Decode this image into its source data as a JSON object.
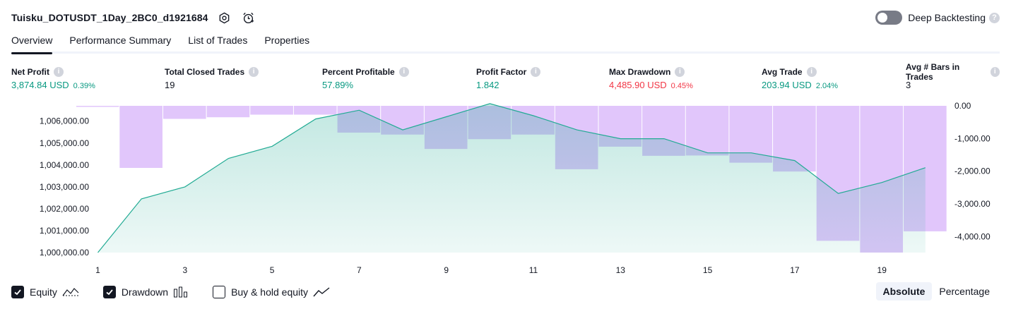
{
  "header": {
    "title": "Tuisku_DOTUSDT_1Day_2BC0_d1921684",
    "deep_backtesting_label": "Deep Backtesting",
    "deep_backtesting_enabled": false
  },
  "tabs": [
    {
      "label": "Overview",
      "active": true
    },
    {
      "label": "Performance Summary",
      "active": false
    },
    {
      "label": "List of Trades",
      "active": false
    },
    {
      "label": "Properties",
      "active": false
    }
  ],
  "metrics": {
    "net_profit": {
      "label": "Net Profit",
      "value": "3,874.84 USD",
      "sub": "0.39%"
    },
    "total_closed_trades": {
      "label": "Total Closed Trades",
      "value": "19"
    },
    "percent_profitable": {
      "label": "Percent Profitable",
      "value": "57.89%"
    },
    "profit_factor": {
      "label": "Profit Factor",
      "value": "1.842"
    },
    "max_drawdown": {
      "label": "Max Drawdown",
      "value": "4,485.90 USD",
      "sub": "0.45%"
    },
    "avg_trade": {
      "label": "Avg Trade",
      "value": "203.94 USD",
      "sub": "2.04%"
    },
    "avg_bars": {
      "label": "Avg # Bars in Trades",
      "value": "3"
    }
  },
  "colors": {
    "equity_line": "#22ab94",
    "equity_fill": "#cdeee6",
    "drawdown_bar": "#e1c6fb",
    "positive": "#089981",
    "negative": "#f23645"
  },
  "chart_data": {
    "type": "area",
    "x": [
      1,
      2,
      3,
      4,
      5,
      6,
      7,
      8,
      9,
      10,
      11,
      12,
      13,
      14,
      15,
      16,
      17,
      18,
      19,
      20
    ],
    "x_ticks": [
      "1",
      "3",
      "5",
      "7",
      "9",
      "11",
      "13",
      "15",
      "17",
      "19"
    ],
    "series": [
      {
        "axis": "left",
        "type": "area",
        "values": [
          1000000,
          1002450,
          1003000,
          1004300,
          1004850,
          1006100,
          1006500,
          1005600,
          1006200,
          1006800,
          1006250,
          1005600,
          1005200,
          1005200,
          1004550,
          1004550,
          1004200,
          1002700,
          1003200,
          1003875
        ]
      },
      {
        "axis": "right",
        "type": "bar",
        "values": [
          0,
          -1900,
          -400,
          -350,
          -270,
          -270,
          -820,
          -880,
          -1320,
          -1020,
          -880,
          -1940,
          -1250,
          -1530,
          -1520,
          -1740,
          -2010,
          -4130,
          -4490,
          -3840
        ]
      }
    ],
    "y_left_ticks": [
      "1,000,000.00",
      "1,001,000.00",
      "1,002,000.00",
      "1,003,000.00",
      "1,004,000.00",
      "1,005,000.00",
      "1,006,000.00"
    ],
    "y_right_ticks": [
      "0.00",
      "-1,000.00",
      "-2,000.00",
      "-3,000.00",
      "-4,000.00"
    ],
    "ylim_left": [
      1000000,
      1006700
    ],
    "ylim_right": [
      -4490,
      0
    ],
    "grid": false
  },
  "legend": {
    "equity": {
      "label": "Equity",
      "checked": true
    },
    "drawdown": {
      "label": "Drawdown",
      "checked": true
    },
    "buy_hold": {
      "label": "Buy & hold equity",
      "checked": false
    }
  },
  "mode": {
    "absolute_label": "Absolute",
    "percentage_label": "Percentage",
    "active": "absolute"
  }
}
